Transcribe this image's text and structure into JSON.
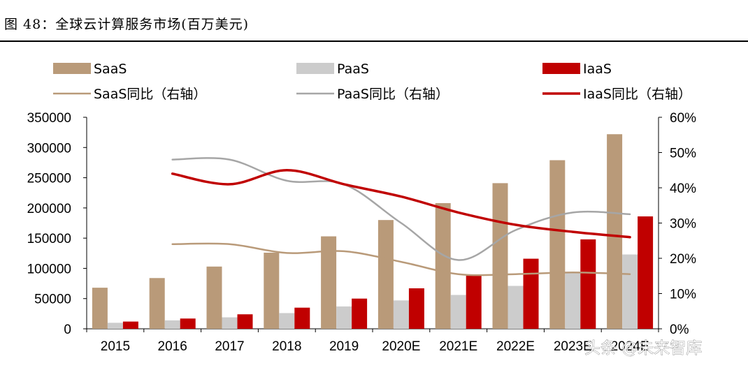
{
  "title": "图 48：全球云计算服务市场(百万美元)",
  "watermark": "头条 @未来智库",
  "chart_data": {
    "type": "bar",
    "categories": [
      "2015",
      "2016",
      "2017",
      "2018",
      "2019",
      "2020E",
      "2021E",
      "2022E",
      "2023E",
      "2024E"
    ],
    "series": [
      {
        "name": "SaaS",
        "kind": "bar",
        "axis": "left",
        "color": "#B99A79",
        "values": [
          68000,
          84000,
          103000,
          126000,
          153000,
          180000,
          208000,
          241000,
          279000,
          322000
        ]
      },
      {
        "name": "PaaS",
        "kind": "bar",
        "axis": "left",
        "color": "#CCCCCC",
        "values": [
          10000,
          14000,
          19000,
          26000,
          37000,
          47000,
          56000,
          71000,
          92000,
          123000
        ]
      },
      {
        "name": "IaaS",
        "kind": "bar",
        "axis": "left",
        "color": "#C00000",
        "values": [
          12000,
          17000,
          24000,
          35000,
          50000,
          67000,
          88000,
          116000,
          148000,
          186000
        ]
      },
      {
        "name": "SaaS同比（右轴）",
        "kind": "line",
        "axis": "right",
        "color": "#B99A79",
        "values": [
          null,
          24,
          24,
          21.5,
          22,
          19,
          15.5,
          15.5,
          16,
          15.5
        ]
      },
      {
        "name": "PaaS同比（右轴）",
        "kind": "line",
        "axis": "right",
        "color": "#A6A6A6",
        "values": [
          null,
          48,
          48,
          42,
          41,
          30,
          19.5,
          28,
          33,
          32.5
        ]
      },
      {
        "name": "IaaS同比（右轴）",
        "kind": "line",
        "axis": "right",
        "color": "#C00000",
        "values": [
          null,
          44,
          41,
          45,
          41,
          37.5,
          33,
          29.5,
          27.5,
          26
        ]
      }
    ],
    "left_axis": {
      "ylim": [
        0,
        350000
      ],
      "ticks": [
        "0",
        "50000",
        "100000",
        "150000",
        "200000",
        "250000",
        "300000",
        "350000"
      ]
    },
    "right_axis": {
      "ylim": [
        0,
        60
      ],
      "ticks": [
        "0%",
        "10%",
        "20%",
        "30%",
        "40%",
        "50%",
        "60%"
      ]
    },
    "legend_position": "top"
  }
}
